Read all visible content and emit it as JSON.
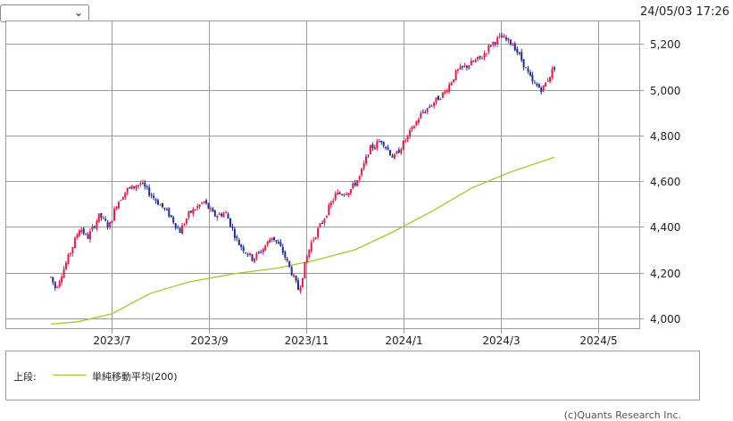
{
  "header": {
    "select_value": "",
    "timestamp": "24/05/03 17:26"
  },
  "legend": {
    "label": "上段:",
    "series_name": "単純移動平均(200)"
  },
  "footer": {
    "copyright": "(c)Quants Research Inc."
  },
  "colors": {
    "up": "#e8194a",
    "down": "#1c2d99",
    "ma": "#9ccc28",
    "grid": "#9a9a9a"
  },
  "chart_data": {
    "type": "candlestick",
    "y_ticks": [
      "4,000",
      "4,200",
      "4,400",
      "4,600",
      "4,800",
      "5,000",
      "5,200"
    ],
    "y_tick_values": [
      4000,
      4200,
      4400,
      4600,
      4800,
      5000,
      5200
    ],
    "x_ticks": [
      "2023/7",
      "2023/9",
      "2023/11",
      "2024/1",
      "2024/3",
      "2024/5"
    ],
    "ylim": [
      3950,
      5280
    ],
    "price_path": [
      {
        "month": 5.75,
        "value": 4180
      },
      {
        "month": 5.85,
        "value": 4130
      },
      {
        "month": 6.1,
        "value": 4260
      },
      {
        "month": 6.35,
        "value": 4400
      },
      {
        "month": 6.5,
        "value": 4350
      },
      {
        "month": 6.75,
        "value": 4450
      },
      {
        "month": 6.95,
        "value": 4400
      },
      {
        "month": 7.1,
        "value": 4500
      },
      {
        "month": 7.3,
        "value": 4560
      },
      {
        "month": 7.6,
        "value": 4590
      },
      {
        "month": 7.9,
        "value": 4520
      },
      {
        "month": 8.2,
        "value": 4450
      },
      {
        "month": 8.4,
        "value": 4380
      },
      {
        "month": 8.6,
        "value": 4460
      },
      {
        "month": 8.9,
        "value": 4510
      },
      {
        "month": 9.1,
        "value": 4450
      },
      {
        "month": 9.35,
        "value": 4460
      },
      {
        "month": 9.6,
        "value": 4330
      },
      {
        "month": 9.9,
        "value": 4260
      },
      {
        "month": 10.1,
        "value": 4300
      },
      {
        "month": 10.3,
        "value": 4360
      },
      {
        "month": 10.5,
        "value": 4300
      },
      {
        "month": 10.7,
        "value": 4200
      },
      {
        "month": 10.85,
        "value": 4120
      },
      {
        "month": 11.0,
        "value": 4260
      },
      {
        "month": 11.1,
        "value": 4330
      },
      {
        "month": 11.3,
        "value": 4410
      },
      {
        "month": 11.6,
        "value": 4540
      },
      {
        "month": 11.9,
        "value": 4560
      },
      {
        "month": 12.1,
        "value": 4620
      },
      {
        "month": 12.3,
        "value": 4740
      },
      {
        "month": 12.55,
        "value": 4780
      },
      {
        "month": 12.8,
        "value": 4700
      },
      {
        "month": 13.1,
        "value": 4800
      },
      {
        "month": 13.35,
        "value": 4890
      },
      {
        "month": 13.6,
        "value": 4940
      },
      {
        "month": 13.85,
        "value": 4990
      },
      {
        "month": 14.1,
        "value": 5080
      },
      {
        "month": 14.35,
        "value": 5110
      },
      {
        "month": 14.6,
        "value": 5140
      },
      {
        "month": 14.8,
        "value": 5200
      },
      {
        "month": 15.0,
        "value": 5230
      },
      {
        "month": 15.25,
        "value": 5200
      },
      {
        "month": 15.45,
        "value": 5120
      },
      {
        "month": 15.65,
        "value": 5030
      },
      {
        "month": 15.85,
        "value": 5000
      },
      {
        "month": 16.0,
        "value": 5060
      },
      {
        "month": 16.1,
        "value": 5100
      }
    ],
    "moving_average": {
      "name": "単純移動平均(200)",
      "points": [
        {
          "month": 5.75,
          "value": 3975
        },
        {
          "month": 6.3,
          "value": 3985
        },
        {
          "month": 7.0,
          "value": 4020
        },
        {
          "month": 7.8,
          "value": 4110
        },
        {
          "month": 8.6,
          "value": 4160
        },
        {
          "month": 9.5,
          "value": 4195
        },
        {
          "month": 10.4,
          "value": 4220
        },
        {
          "month": 11.2,
          "value": 4255
        },
        {
          "month": 12.0,
          "value": 4300
        },
        {
          "month": 12.8,
          "value": 4380
        },
        {
          "month": 13.6,
          "value": 4470
        },
        {
          "month": 14.4,
          "value": 4570
        },
        {
          "month": 15.2,
          "value": 4640
        },
        {
          "month": 16.1,
          "value": 4705
        }
      ]
    }
  }
}
